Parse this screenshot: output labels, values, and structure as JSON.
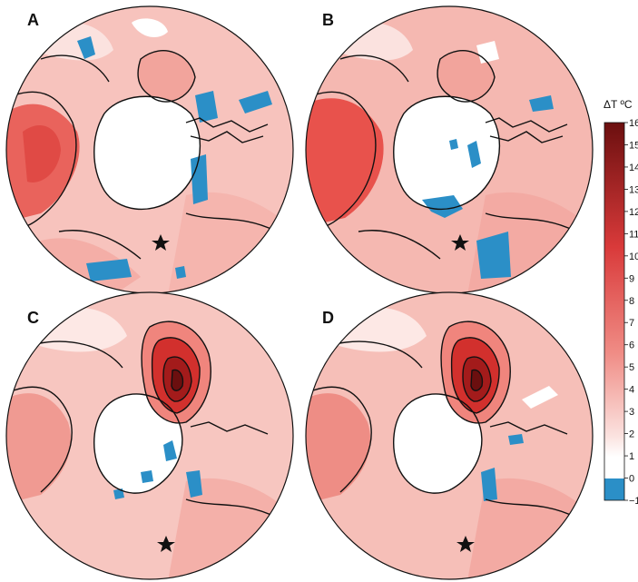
{
  "panels": [
    {
      "label": "A"
    },
    {
      "label": "B"
    },
    {
      "label": "C"
    },
    {
      "label": "D"
    }
  ],
  "colorbar": {
    "title": "ΔT ºC",
    "ticks": [
      "16",
      "15",
      "14",
      "13",
      "12",
      "11",
      "10",
      "9",
      "8",
      "7",
      "6",
      "5",
      "4",
      "3",
      "2",
      "1",
      "0",
      "−1"
    ],
    "colors": {
      "top": "#6b0f0f",
      "mid_high": "#d93a3a",
      "mid": "#f08d86",
      "low": "#fbe2df",
      "zero": "#ffffff",
      "negative": "#2b8fc7"
    }
  }
}
